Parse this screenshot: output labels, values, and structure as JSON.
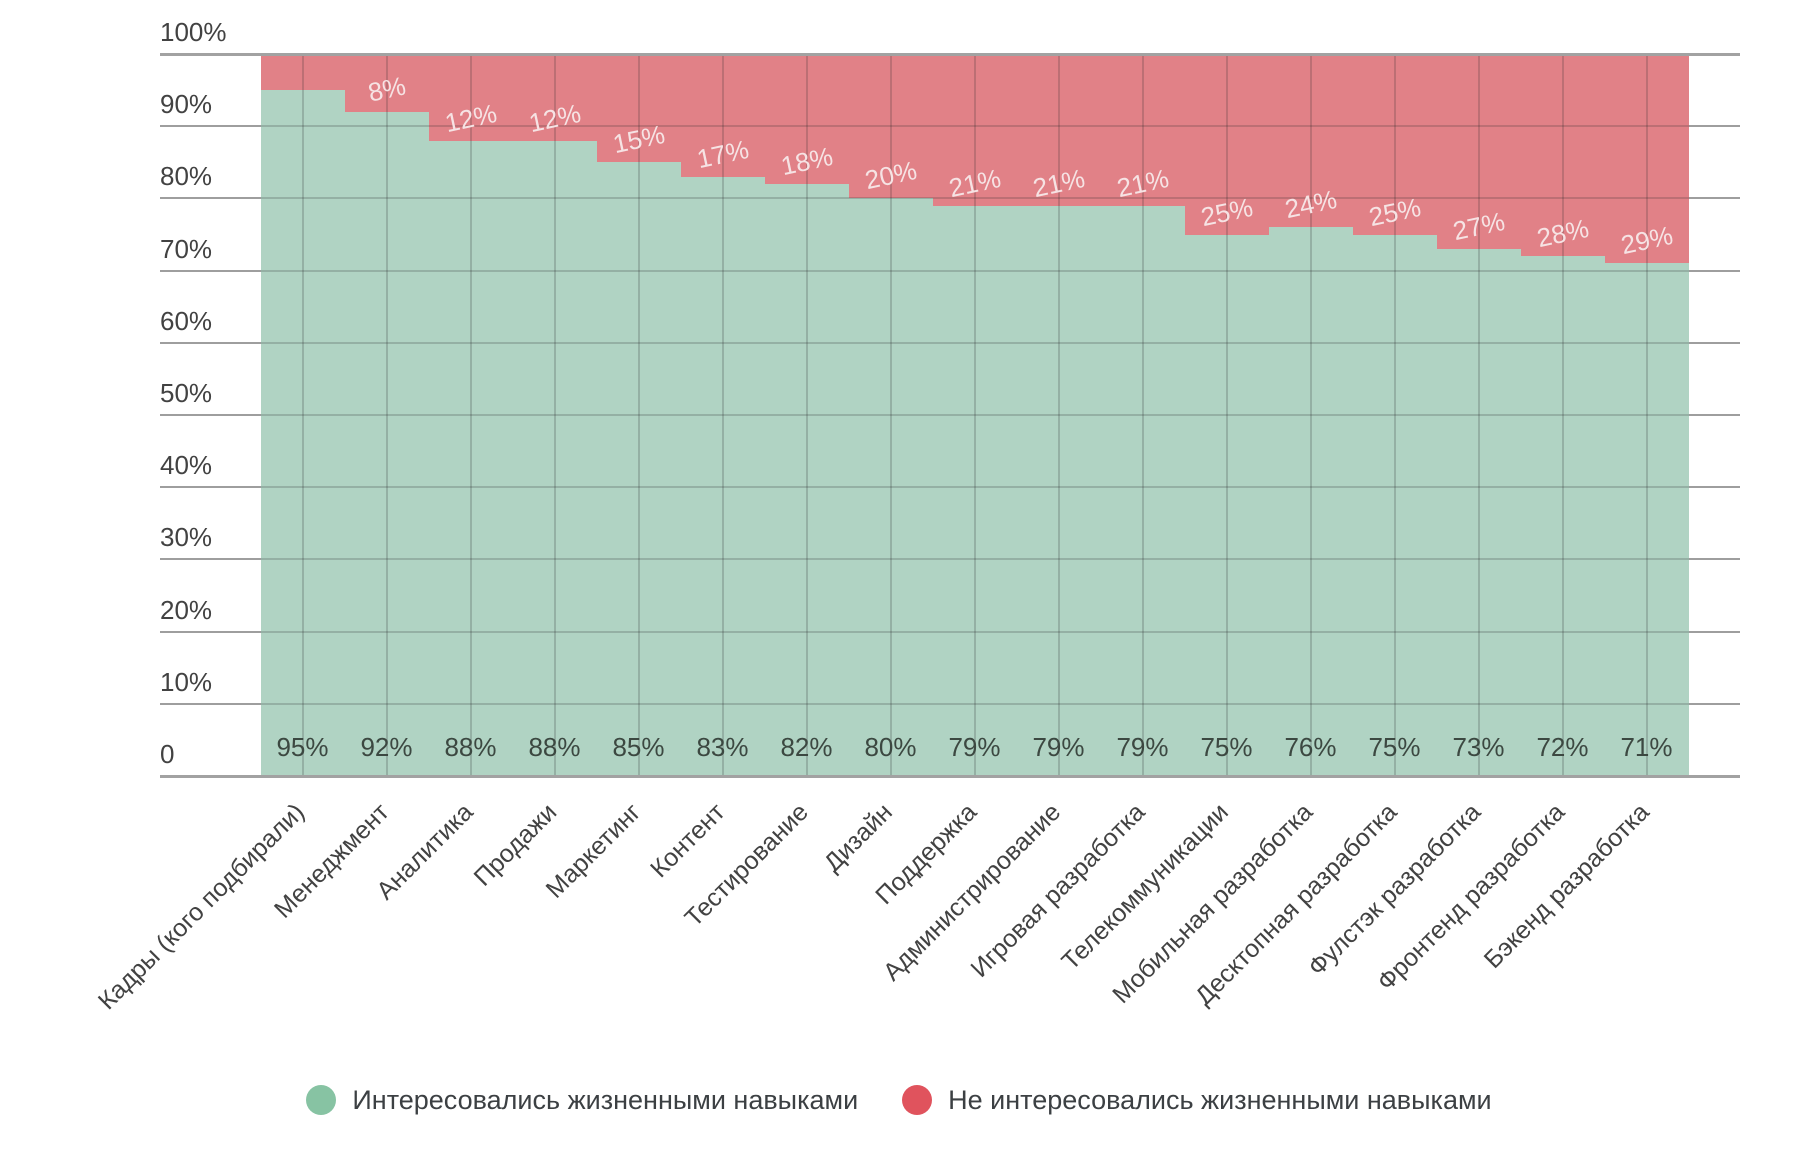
{
  "chart_data": {
    "type": "bar",
    "variant": "stacked-100-percent-stepped",
    "title": "",
    "xlabel": "",
    "ylabel": "",
    "ylim": [
      0,
      100
    ],
    "grid": true,
    "legend_position": "bottom",
    "y_ticks": [
      "100%",
      "90%",
      "80%",
      "70%",
      "60%",
      "50%",
      "40%",
      "30%",
      "20%",
      "10%",
      "0"
    ],
    "categories": [
      "Кадры (кого подбирали)",
      "Менеджмент",
      "Аналитика",
      "Продажи",
      "Маркетинг",
      "Контент",
      "Тестирование",
      "Дизайн",
      "Поддержка",
      "Администрирование",
      "Игровая разработка",
      "Телекоммуникации",
      "Мобильная разработка",
      "Десктопная разработка",
      "Фулстэк разработка",
      "Фронтенд разработка",
      "Бэкенд разработка"
    ],
    "series": [
      {
        "name": "Интересовались жизненными навыками",
        "legend_color": "#87c3a3",
        "fill_color": "#b0d3c3",
        "values": [
          95,
          92,
          88,
          88,
          85,
          83,
          82,
          80,
          79,
          79,
          79,
          75,
          76,
          75,
          73,
          72,
          71
        ],
        "labels": [
          "95%",
          "92%",
          "88%",
          "88%",
          "85%",
          "83%",
          "82%",
          "80%",
          "79%",
          "79%",
          "79%",
          "75%",
          "76%",
          "75%",
          "73%",
          "72%",
          "71%"
        ]
      },
      {
        "name": "Не интересовались жизненными навыками",
        "legend_color": "#e0535d",
        "fill_color": "#e18187",
        "values": [
          5,
          8,
          12,
          12,
          15,
          17,
          18,
          20,
          21,
          21,
          21,
          25,
          24,
          25,
          27,
          28,
          29
        ],
        "labels": [
          "",
          "8%",
          "12%",
          "12%",
          "15%",
          "17%",
          "18%",
          "20%",
          "21%",
          "21%",
          "21%",
          "25%",
          "24%",
          "25%",
          "27%",
          "28%",
          "29%"
        ]
      }
    ]
  },
  "colors": {
    "gridline": "#9e9e9e",
    "axis_line": "#a2a2a2",
    "tick_text": "#424242",
    "green_value_text": "#3c4841",
    "red_value_text": "#f6e3e4",
    "legend_text": "#3c4043",
    "background": "#ffffff"
  }
}
